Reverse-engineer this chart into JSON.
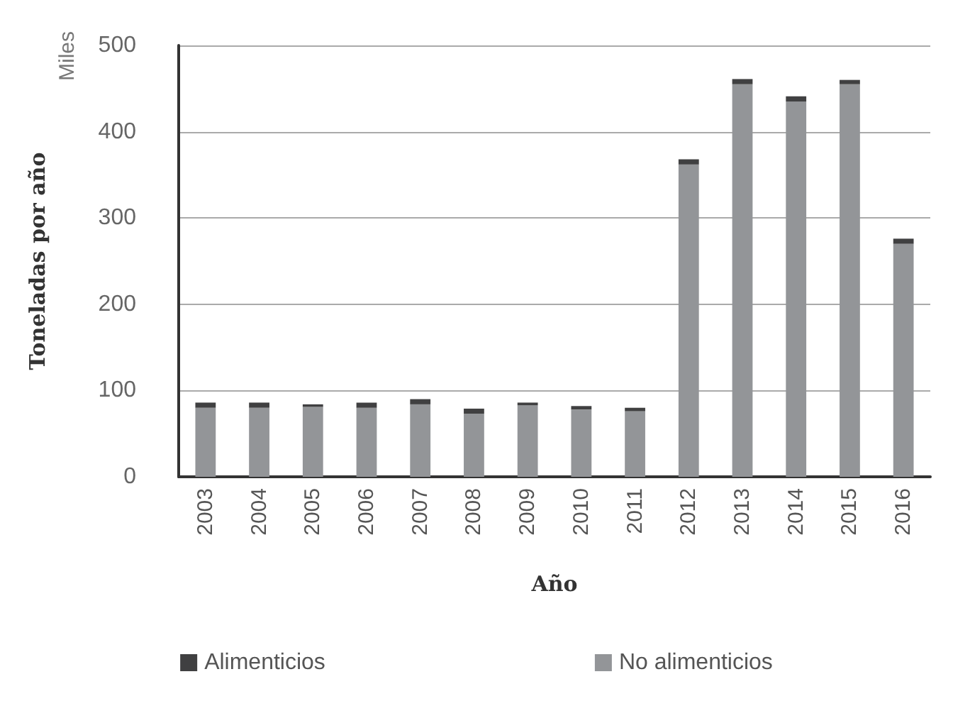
{
  "chart_data": {
    "type": "bar",
    "xlabel": "Año",
    "ylabel": "Toneladas por año",
    "annotations": [
      "Miles"
    ],
    "categories": [
      "2003",
      "2004",
      "2005",
      "2006",
      "2007",
      "2008",
      "2009",
      "2010",
      "2011",
      "2012",
      "2013",
      "2014",
      "2015",
      "2016"
    ],
    "stacked": true,
    "series": [
      {
        "name": "No alimenticios",
        "color": "#939598",
        "values": [
          80,
          80,
          81,
          80,
          84,
          73,
          83,
          78,
          76,
          362,
          455,
          435,
          455,
          270
        ]
      },
      {
        "name": "Alimenticios",
        "color": "#404041",
        "values": [
          6,
          6,
          3,
          6,
          6,
          6,
          3,
          4,
          4,
          6,
          6,
          6,
          5,
          6
        ]
      }
    ],
    "ylim": [
      0,
      500
    ],
    "yticks": [
      0,
      100,
      200,
      300,
      400,
      500
    ],
    "grid": "y",
    "legend": "bottom"
  }
}
